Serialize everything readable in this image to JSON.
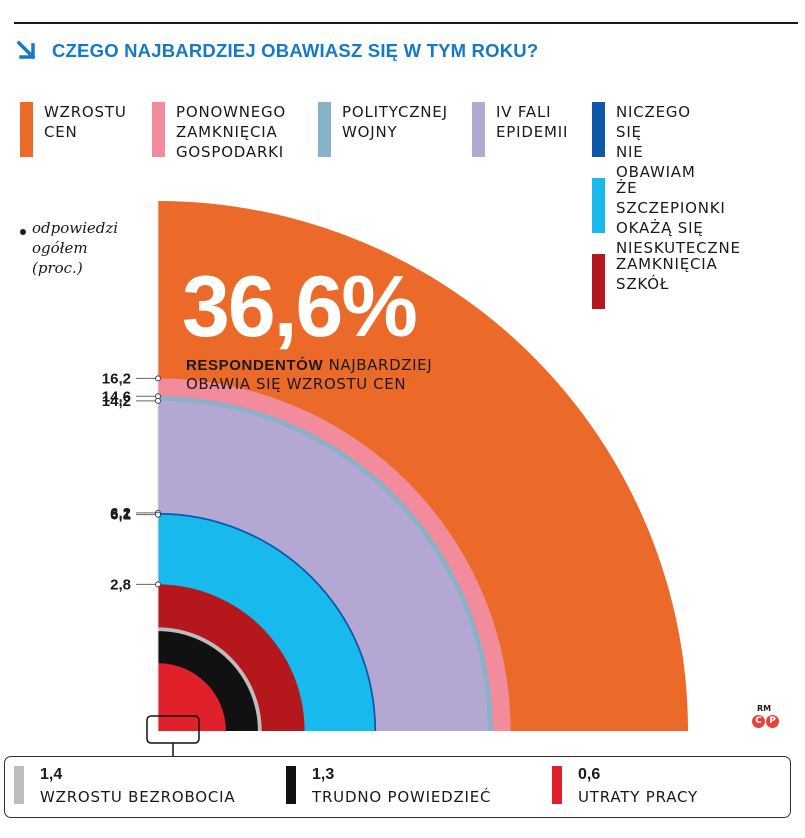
{
  "title": "CZEGO NAJBARDZIEJ OBAWIASZ SIĘ W TYM ROKU?",
  "colors": {
    "title": "#1679c8",
    "wzrost_cen": "#ec6a29",
    "zamkniecia_gospodarki": "#f28c9c",
    "wojny": "#88b2c7",
    "epidemii": "#b3a8d4",
    "nic": "#0f57a8",
    "szczepionki": "#18b9ec",
    "szkol": "#b4171c",
    "bezrobocia": "#bdbdbd",
    "trudno": "#111111",
    "pracy": "#e0202b"
  },
  "note": {
    "text": "odpowiedzi\nogółem\n(proc.)"
  },
  "headline": {
    "value": "36,6%",
    "bold": "RESPONDENTÓW",
    "rest": " NAJBARDZIEJ OBAWIA SIĘ WZROSTU CEN"
  },
  "copyright": {
    "rm": "RM",
    "c": "C",
    "p": "P"
  },
  "chart_data": {
    "type": "area",
    "subtype": "concentric-quarter-circles",
    "title": "CZEGO NAJBARDZIEJ OBAWIASZ SIĘ W TYM ROKU?",
    "unit": "proc.",
    "series": [
      {
        "name": "WZROSTU CEN",
        "value": 36.6,
        "color": "#ec6a29",
        "legend": "WZROSTU\nCEN"
      },
      {
        "name": "PONOWNEGO ZAMKNIĘCIA GOSPODARKI",
        "value": 16.2,
        "color": "#f28c9c",
        "legend": "PONOWNEGO\nZAMKNIĘCIA\nGOSPODARKI"
      },
      {
        "name": "POLITYCZNEJ WOJNY",
        "value": 14.6,
        "color": "#88b2c7",
        "legend": "POLITYCZNEJ\nWOJNY"
      },
      {
        "name": "IV FALI EPIDEMII",
        "value": 14.2,
        "color": "#b3a8d4",
        "legend": "IV FALI\nEPIDEMII"
      },
      {
        "name": "NICZEGO SIĘ NIE OBAWIAM",
        "value": 6.2,
        "color": "#0f57a8",
        "legend": "NICZEGO SIĘ\nNIE OBAWIAM"
      },
      {
        "name": "ŻE SZCZEPIONKI OKAŻĄ SIĘ NIESKUTECZNE",
        "value": 6.1,
        "color": "#18b9ec",
        "legend": "ŻE SZCZEPIONKI\nOKAŻĄ SIĘ\nNIESKUTECZNE"
      },
      {
        "name": "ZAMKNIĘCIA SZKÓŁ",
        "value": 2.8,
        "color": "#b4171c",
        "legend": "ZAMKNIĘCIA\nSZKÓŁ"
      },
      {
        "name": "WZROSTU BEZROBOCIA",
        "value": 1.4,
        "color": "#bdbdbd"
      },
      {
        "name": "TRUDNO POWIEDZIEĆ",
        "value": 1.3,
        "color": "#111111"
      },
      {
        "name": "UTRATY PRACY",
        "value": 0.6,
        "color": "#e0202b"
      }
    ],
    "axis_labels": [
      "16,2",
      "14,6",
      "14,2",
      "6,2",
      "6,1",
      "2,8"
    ],
    "footer": [
      {
        "value": "1,4",
        "label": "WZROSTU BEZROBOCIA",
        "color": "#bdbdbd"
      },
      {
        "value": "1,3",
        "label": "TRUDNO POWIEDZIEĆ",
        "color": "#111111"
      },
      {
        "value": "0,6",
        "label": "UTRATY PRACY",
        "color": "#e0202b"
      }
    ]
  }
}
